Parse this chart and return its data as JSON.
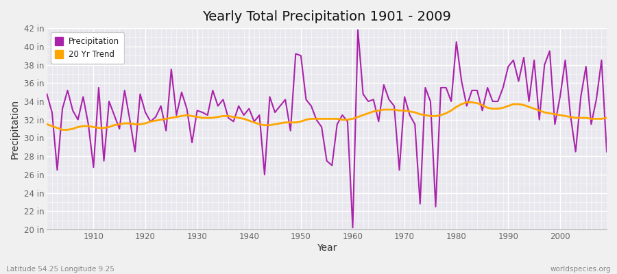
{
  "title": "Yearly Total Precipitation 1901 - 2009",
  "xlabel": "Year",
  "ylabel": "Precipitation",
  "subtitle_left": "Latitude 54.25 Longitude 9.25",
  "subtitle_right": "worldspecies.org",
  "years": [
    1901,
    1902,
    1903,
    1904,
    1905,
    1906,
    1907,
    1908,
    1909,
    1910,
    1911,
    1912,
    1913,
    1914,
    1915,
    1916,
    1917,
    1918,
    1919,
    1920,
    1921,
    1922,
    1923,
    1924,
    1925,
    1926,
    1927,
    1928,
    1929,
    1930,
    1931,
    1932,
    1933,
    1934,
    1935,
    1936,
    1937,
    1938,
    1939,
    1940,
    1941,
    1942,
    1943,
    1944,
    1945,
    1946,
    1947,
    1948,
    1949,
    1950,
    1951,
    1952,
    1953,
    1954,
    1955,
    1956,
    1957,
    1958,
    1959,
    1960,
    1961,
    1962,
    1963,
    1964,
    1965,
    1966,
    1967,
    1968,
    1969,
    1970,
    1971,
    1972,
    1973,
    1974,
    1975,
    1976,
    1977,
    1978,
    1979,
    1980,
    1981,
    1982,
    1983,
    1984,
    1985,
    1986,
    1987,
    1988,
    1989,
    1990,
    1991,
    1992,
    1993,
    1994,
    1995,
    1996,
    1997,
    1998,
    1999,
    2000,
    2001,
    2002,
    2003,
    2004,
    2005,
    2006,
    2007,
    2008,
    2009
  ],
  "precip": [
    34.8,
    32.8,
    26.5,
    33.2,
    35.2,
    33.0,
    32.0,
    34.5,
    31.5,
    26.8,
    35.5,
    27.5,
    34.0,
    32.5,
    31.0,
    35.2,
    32.0,
    28.5,
    34.8,
    32.8,
    31.8,
    32.3,
    33.5,
    30.8,
    37.5,
    32.5,
    35.0,
    33.2,
    29.5,
    33.0,
    32.8,
    32.5,
    35.2,
    33.5,
    34.2,
    32.2,
    31.8,
    33.5,
    32.5,
    33.2,
    31.8,
    32.5,
    26.0,
    34.5,
    32.8,
    33.5,
    34.2,
    30.8,
    39.2,
    39.0,
    34.2,
    33.5,
    32.0,
    31.2,
    27.5,
    27.0,
    31.5,
    32.5,
    31.8,
    20.2,
    41.8,
    34.8,
    34.0,
    34.2,
    31.8,
    35.8,
    34.2,
    33.5,
    26.5,
    34.5,
    32.5,
    31.5,
    22.8,
    35.5,
    34.0,
    22.5,
    35.5,
    35.5,
    34.0,
    40.5,
    36.2,
    33.5,
    35.2,
    35.2,
    33.0,
    35.5,
    34.0,
    34.0,
    35.5,
    37.8,
    38.5,
    36.2,
    38.8,
    34.0,
    38.5,
    32.0,
    38.0,
    39.5,
    31.5,
    34.5,
    38.5,
    32.5,
    28.5,
    34.5,
    37.8,
    31.5,
    34.2,
    38.5,
    28.5
  ],
  "trend": [
    31.5,
    31.3,
    31.1,
    30.9,
    30.9,
    31.0,
    31.2,
    31.3,
    31.3,
    31.2,
    31.1,
    31.1,
    31.2,
    31.4,
    31.5,
    31.6,
    31.6,
    31.5,
    31.5,
    31.6,
    31.8,
    31.9,
    32.0,
    32.1,
    32.2,
    32.3,
    32.4,
    32.5,
    32.4,
    32.3,
    32.2,
    32.2,
    32.2,
    32.3,
    32.4,
    32.4,
    32.3,
    32.2,
    32.1,
    31.9,
    31.7,
    31.5,
    31.4,
    31.4,
    31.5,
    31.6,
    31.7,
    31.7,
    31.7,
    31.8,
    32.0,
    32.1,
    32.1,
    32.1,
    32.1,
    32.1,
    32.1,
    32.0,
    32.0,
    32.1,
    32.3,
    32.5,
    32.7,
    32.9,
    33.0,
    33.1,
    33.1,
    33.1,
    33.0,
    33.0,
    32.9,
    32.8,
    32.6,
    32.5,
    32.4,
    32.4,
    32.5,
    32.7,
    33.0,
    33.4,
    33.7,
    33.9,
    33.9,
    33.8,
    33.6,
    33.3,
    33.2,
    33.2,
    33.3,
    33.5,
    33.7,
    33.7,
    33.6,
    33.4,
    33.2,
    33.0,
    32.8,
    32.7,
    32.6,
    32.5,
    32.4,
    32.3,
    32.2,
    32.2,
    32.2,
    32.1,
    32.1,
    32.1,
    32.2
  ],
  "precip_color": "#aa22aa",
  "trend_color": "#FFA500",
  "bg_color": "#f0f0f0",
  "plot_bg_color": "#e8e8ee",
  "grid_color": "#ffffff",
  "ylim": [
    20,
    42
  ],
  "ytick_step": 2,
  "xlim": [
    1901,
    2009
  ],
  "legend_loc": "upper left"
}
